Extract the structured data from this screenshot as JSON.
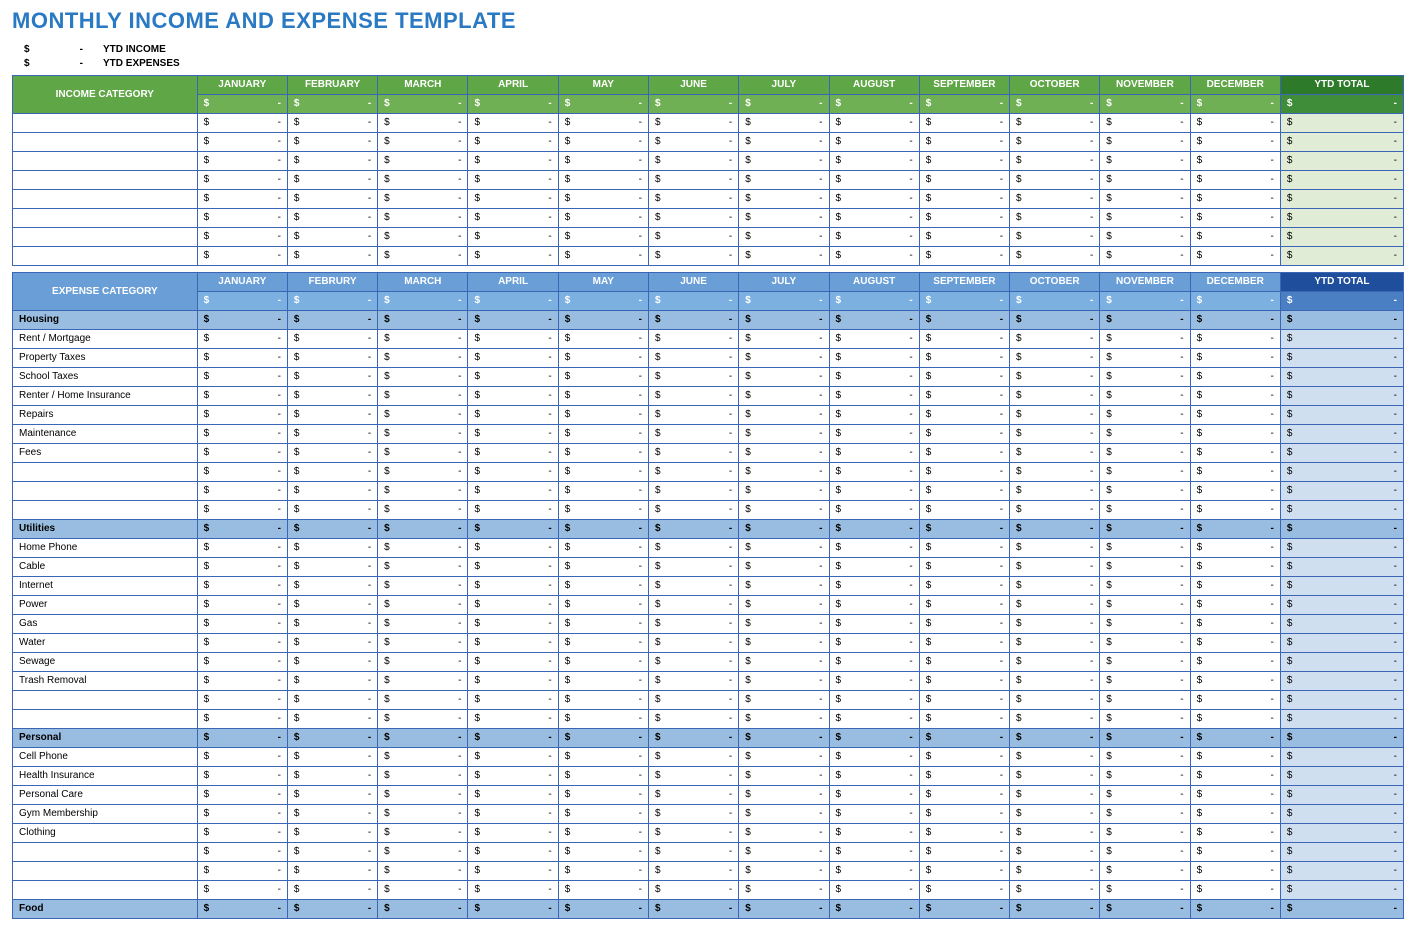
{
  "title": "MONTHLY INCOME AND EXPENSE TEMPLATE",
  "title_color": "#2a7ac3",
  "summary": [
    {
      "dollar": "$",
      "dash": "-",
      "label": "YTD INCOME"
    },
    {
      "dollar": "$",
      "dash": "-",
      "label": "YTD EXPENSES"
    }
  ],
  "months": [
    "JANUARY",
    "FEBRUARY",
    "MARCH",
    "APRIL",
    "MAY",
    "JUNE",
    "JULY",
    "AUGUST",
    "SEPTEMBER",
    "OCTOBER",
    "NOVEMBER",
    "DECEMBER"
  ],
  "months_exp": [
    "JANUARY",
    "FEBRURY",
    "MARCH",
    "APRIL",
    "MAY",
    "JUNE",
    "JULY",
    "AUGUST",
    "SEPTEMBER",
    "OCTOBER",
    "NOVEMBER",
    "DECEMBER"
  ],
  "ytd_label": "YTD TOTAL",
  "dollar": "$",
  "dash": "-",
  "income": {
    "category_header": "INCOME CATEGORY",
    "header_bg": "#5fa646",
    "header_sub_bg": "#6fb054",
    "ytd_header_bg": "#2d7a2a",
    "ytd_sub_bg": "#3f8d39",
    "ytd_cell_bg": "#e1ecd6",
    "border": "#3a66b5",
    "row_count": 8
  },
  "expense": {
    "category_header": "EXPENSE CATEGORY",
    "header_bg": "#6a9ed6",
    "header_sub_bg": "#7bb0e1",
    "ytd_header_bg": "#1f4e9c",
    "ytd_sub_bg": "#4a7fc4",
    "ytd_cell_bg": "#d0dff0",
    "section_bg": "#99bde0",
    "border": "#3a66b5",
    "sections": [
      {
        "name": "Housing",
        "rows": [
          "Rent / Mortgage",
          "Property Taxes",
          "School Taxes",
          "Renter / Home Insurance",
          "Repairs",
          "Maintenance",
          "Fees",
          "",
          "",
          ""
        ]
      },
      {
        "name": "Utilities",
        "rows": [
          "Home Phone",
          "Cable",
          "Internet",
          "Power",
          "Gas",
          "Water",
          "Sewage",
          "Trash Removal",
          "",
          ""
        ]
      },
      {
        "name": "Personal",
        "rows": [
          "Cell Phone",
          "Health Insurance",
          "Personal Care",
          "Gym Membership",
          "Clothing",
          "",
          "",
          ""
        ]
      },
      {
        "name": "Food",
        "rows": []
      }
    ]
  }
}
